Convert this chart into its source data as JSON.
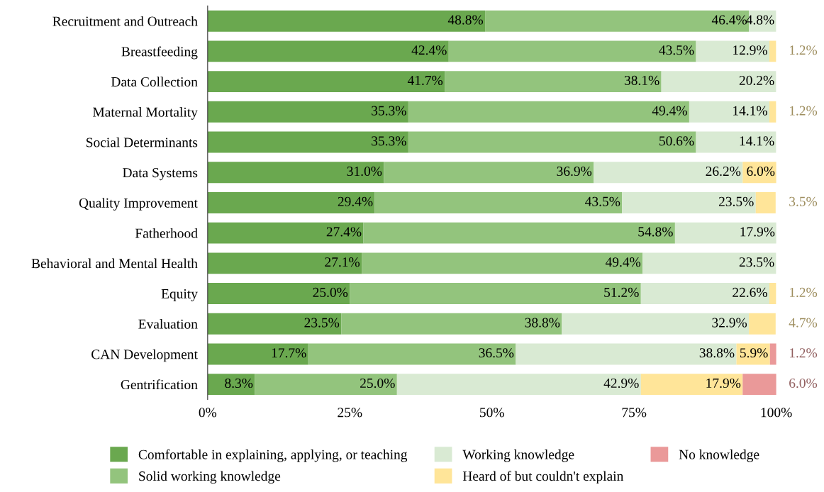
{
  "chart_data": {
    "type": "bar",
    "orientation": "horizontal",
    "stacked": true,
    "categories": [
      "Recruitment and Outreach",
      "Breastfeeding",
      "Data Collection",
      "Maternal Mortality",
      "Social Determinants",
      "Data Systems",
      "Quality Improvement",
      "Fatherhood",
      "Behavioral and Mental Health",
      "Equity",
      "Evaluation",
      "CAN Development",
      "Gentrification"
    ],
    "series": [
      {
        "name": "Comfortable in explaining, applying, or teaching",
        "color": "#6aa84f",
        "values": [
          48.8,
          42.4,
          41.7,
          35.3,
          35.3,
          31.0,
          29.4,
          27.4,
          27.1,
          25.0,
          23.5,
          17.7,
          8.3
        ],
        "value_labels": [
          "48.8%",
          "42.4%",
          "41.7%",
          "35.3%",
          "35.3%",
          "31.0%",
          "29.4%",
          "27.4%",
          "27.1%",
          "25.0%",
          "23.5%",
          "17.7%",
          "8.3%"
        ]
      },
      {
        "name": "Solid working knowledge",
        "color": "#93c47d",
        "values": [
          46.4,
          43.5,
          38.1,
          49.4,
          50.6,
          36.9,
          43.5,
          54.8,
          49.4,
          51.2,
          38.8,
          36.5,
          25.0
        ],
        "value_labels": [
          "46.4%",
          "43.5%",
          "38.1%",
          "49.4%",
          "50.6%",
          "36.9%",
          "43.5%",
          "54.8%",
          "49.4%",
          "51.2%",
          "38.8%",
          "36.5%",
          "25.0%"
        ]
      },
      {
        "name": "Working knowledge",
        "color": "#d9ead3",
        "values": [
          4.8,
          12.9,
          20.2,
          14.1,
          14.1,
          26.2,
          23.5,
          17.9,
          23.5,
          22.6,
          32.9,
          38.8,
          42.9
        ],
        "value_labels": [
          "4.8%",
          "12.9%",
          "20.2%",
          "14.1%",
          "14.1%",
          "26.2%",
          "23.5%",
          "17.9%",
          "23.5%",
          "22.6%",
          "32.9%",
          "38.8%",
          "42.9%"
        ]
      },
      {
        "name": "Heard of but couldn't explain",
        "color": "#ffe599",
        "values": [
          null,
          1.2,
          null,
          1.2,
          null,
          6.0,
          3.5,
          null,
          null,
          1.2,
          4.7,
          5.9,
          17.9
        ],
        "value_labels": [
          null,
          "1.2%",
          null,
          "1.2%",
          null,
          "6.0%",
          "3.5%",
          null,
          null,
          "1.2%",
          "4.7%",
          "5.9%",
          "17.9%"
        ]
      },
      {
        "name": "No knowledge",
        "color": "#ea9999",
        "values": [
          null,
          null,
          null,
          null,
          null,
          null,
          null,
          null,
          null,
          null,
          null,
          1.2,
          6.0
        ],
        "value_labels": [
          null,
          null,
          null,
          null,
          null,
          null,
          null,
          null,
          null,
          null,
          null,
          "1.2%",
          "6.0%"
        ]
      }
    ],
    "xlim": [
      0,
      100
    ],
    "xticks": [
      {
        "value": 0,
        "label": "0%"
      },
      {
        "value": 25,
        "label": "25%"
      },
      {
        "value": 50,
        "label": "50%"
      },
      {
        "value": 75,
        "label": "75%"
      },
      {
        "value": 100,
        "label": "100%"
      }
    ],
    "grid": false,
    "legend": "bottom"
  }
}
